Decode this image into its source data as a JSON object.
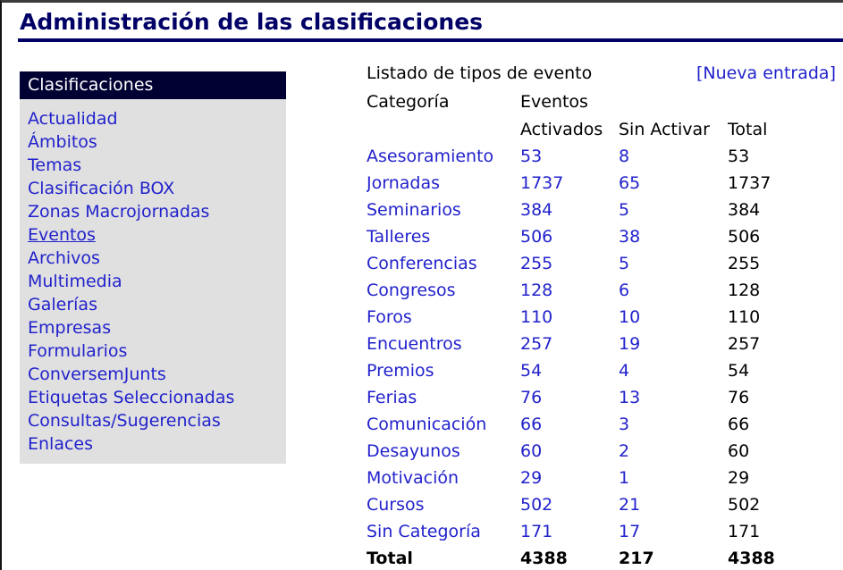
{
  "page": {
    "title": "Administración de las clasificaciones"
  },
  "colors": {
    "title_navy": "#000066",
    "sidebar_header_bg": "#000033",
    "sidebar_bg": "#e0e0e0",
    "link_blue": "#2222cc",
    "text_black": "#000000"
  },
  "sidebar": {
    "header": "Clasificaciones",
    "items": [
      {
        "label": "Actualidad",
        "active": false
      },
      {
        "label": "Ámbitos",
        "active": false
      },
      {
        "label": "Temas",
        "active": false
      },
      {
        "label": "Clasificación BOX",
        "active": false
      },
      {
        "label": "Zonas Macrojornadas",
        "active": false
      },
      {
        "label": "Eventos",
        "active": true
      },
      {
        "label": "Archivos",
        "active": false
      },
      {
        "label": "Multimedia",
        "active": false
      },
      {
        "label": "Galerías",
        "active": false
      },
      {
        "label": "Empresas",
        "active": false
      },
      {
        "label": "Formularios",
        "active": false
      },
      {
        "label": "ConversemJunts",
        "active": false
      },
      {
        "label": "Etiquetas Seleccionadas",
        "active": false
      },
      {
        "label": "Consultas/Sugerencias",
        "active": false
      },
      {
        "label": "Enlaces",
        "active": false
      }
    ]
  },
  "main": {
    "list_title": "Listado de tipos de evento",
    "new_entry_link": "[Nueva entrada]",
    "table": {
      "col_category": "Categoría",
      "col_events": "Eventos",
      "col_activated": "Activados",
      "col_not_activated": "Sin Activar",
      "col_total": "Total",
      "rows": [
        {
          "category": "Asesoramiento",
          "activados": "53",
          "sin_activar": "8",
          "total": "53"
        },
        {
          "category": "Jornadas",
          "activados": "1737",
          "sin_activar": "65",
          "total": "1737"
        },
        {
          "category": "Seminarios",
          "activados": "384",
          "sin_activar": "5",
          "total": "384"
        },
        {
          "category": "Talleres",
          "activados": "506",
          "sin_activar": "38",
          "total": "506"
        },
        {
          "category": "Conferencias",
          "activados": "255",
          "sin_activar": "5",
          "total": "255"
        },
        {
          "category": "Congresos",
          "activados": "128",
          "sin_activar": "6",
          "total": "128"
        },
        {
          "category": "Foros",
          "activados": "110",
          "sin_activar": "10",
          "total": "110"
        },
        {
          "category": "Encuentros",
          "activados": "257",
          "sin_activar": "19",
          "total": "257"
        },
        {
          "category": "Premios",
          "activados": "54",
          "sin_activar": "4",
          "total": "54"
        },
        {
          "category": "Ferias",
          "activados": "76",
          "sin_activar": "13",
          "total": "76"
        },
        {
          "category": "Comunicación",
          "activados": "66",
          "sin_activar": "3",
          "total": "66"
        },
        {
          "category": "Desayunos",
          "activados": "60",
          "sin_activar": "2",
          "total": "60"
        },
        {
          "category": "Motivación",
          "activados": "29",
          "sin_activar": "1",
          "total": "29"
        },
        {
          "category": "Cursos",
          "activados": "502",
          "sin_activar": "21",
          "total": "502"
        },
        {
          "category": "Sin Categoría",
          "activados": "171",
          "sin_activar": "17",
          "total": "171"
        }
      ],
      "total_row": {
        "label": "Total",
        "activados": "4388",
        "sin_activar": "217",
        "total": "4388"
      }
    }
  }
}
